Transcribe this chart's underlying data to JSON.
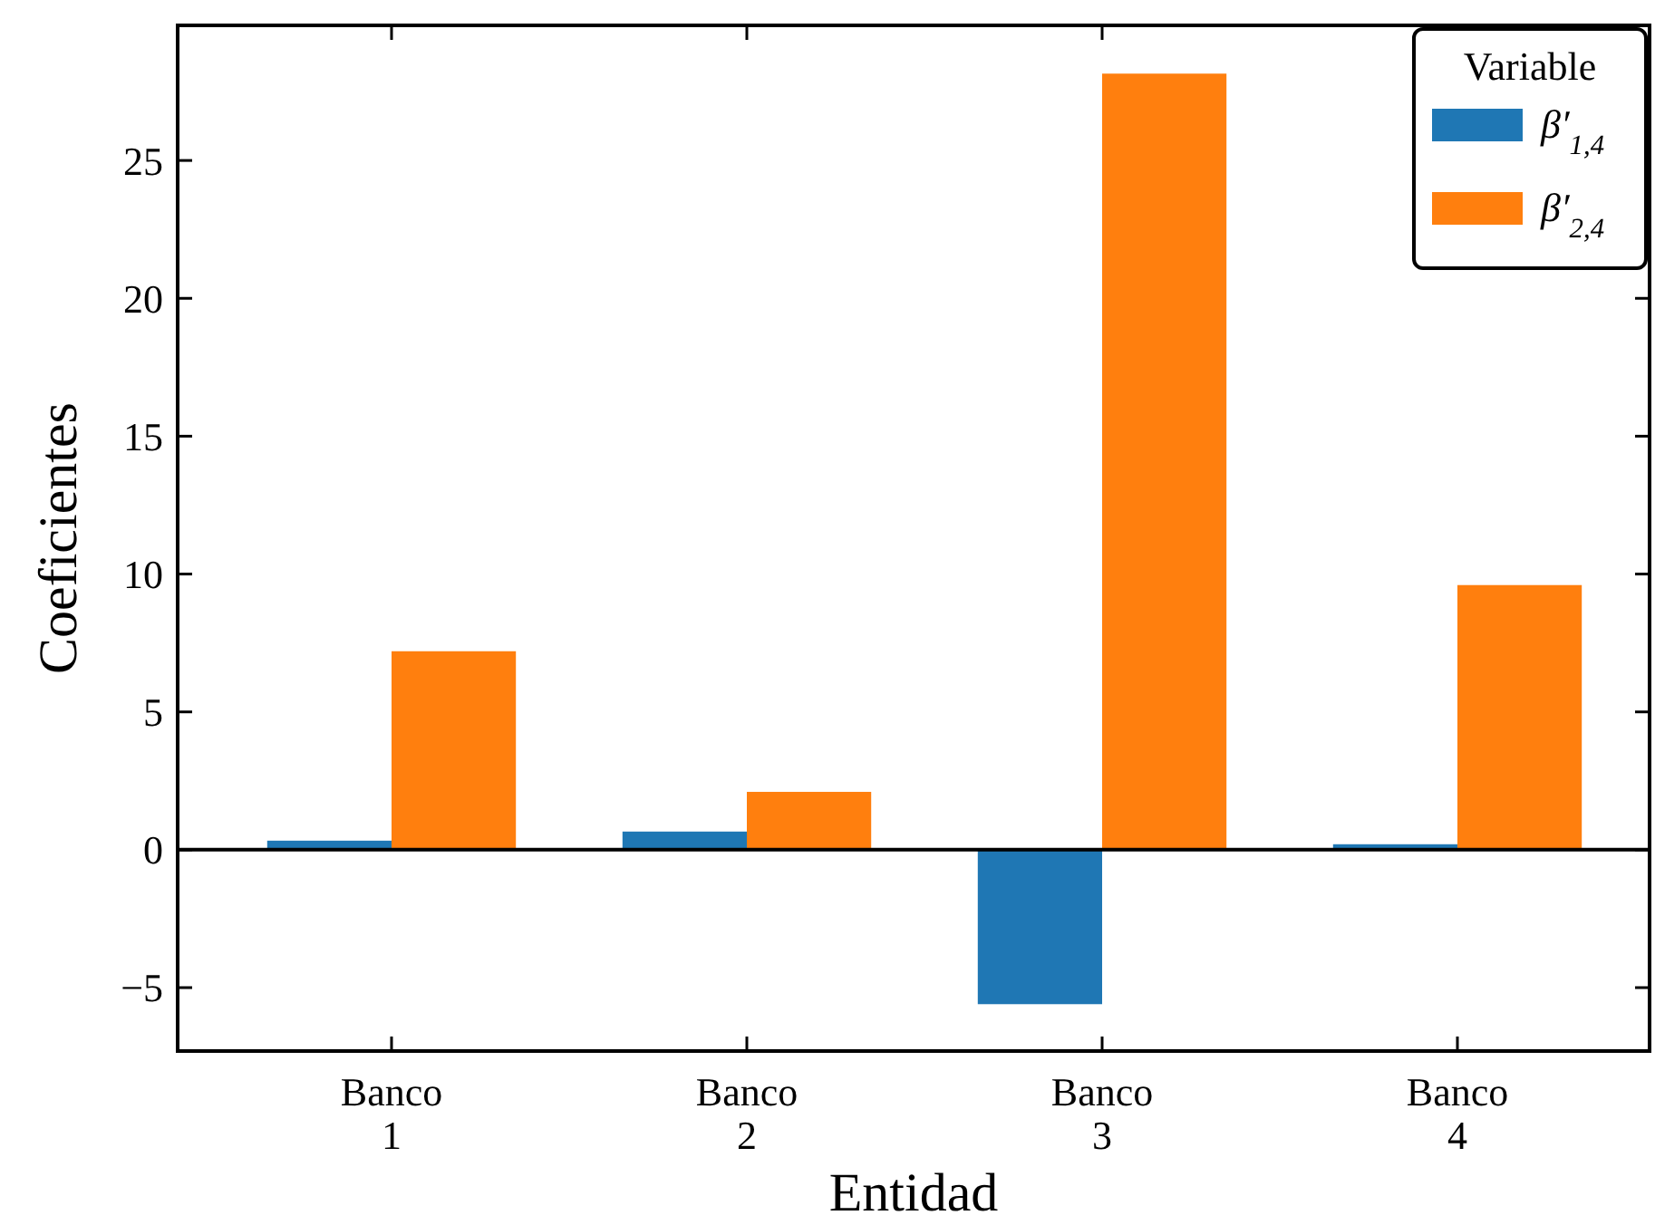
{
  "chart_data": {
    "type": "bar",
    "xlabel": "Entidad",
    "ylabel": "Coeficientes",
    "legend_title": "Variable",
    "legend": "top right",
    "categories": [
      "Banco\n1",
      "Banco\n2",
      "Banco\n3",
      "Banco\n4"
    ],
    "series": [
      {
        "name": "β′$_{1,4}$",
        "color": "#1f77b4",
        "values": [
          0.33,
          0.66,
          -5.6,
          0.2
        ]
      },
      {
        "name": "β′$_{2,4}$",
        "color": "#ff7f0e",
        "values": [
          7.2,
          2.1,
          28.15,
          9.6
        ]
      }
    ],
    "ylim": [
      -7.3,
      29.9
    ],
    "yticks": [
      {
        "value": -5,
        "label": "−5"
      },
      0,
      5,
      10,
      15,
      20,
      25
    ],
    "ref_lines": [
      {
        "axis": "y",
        "value": 0,
        "color": "#000000"
      }
    ],
    "grid": false
  }
}
